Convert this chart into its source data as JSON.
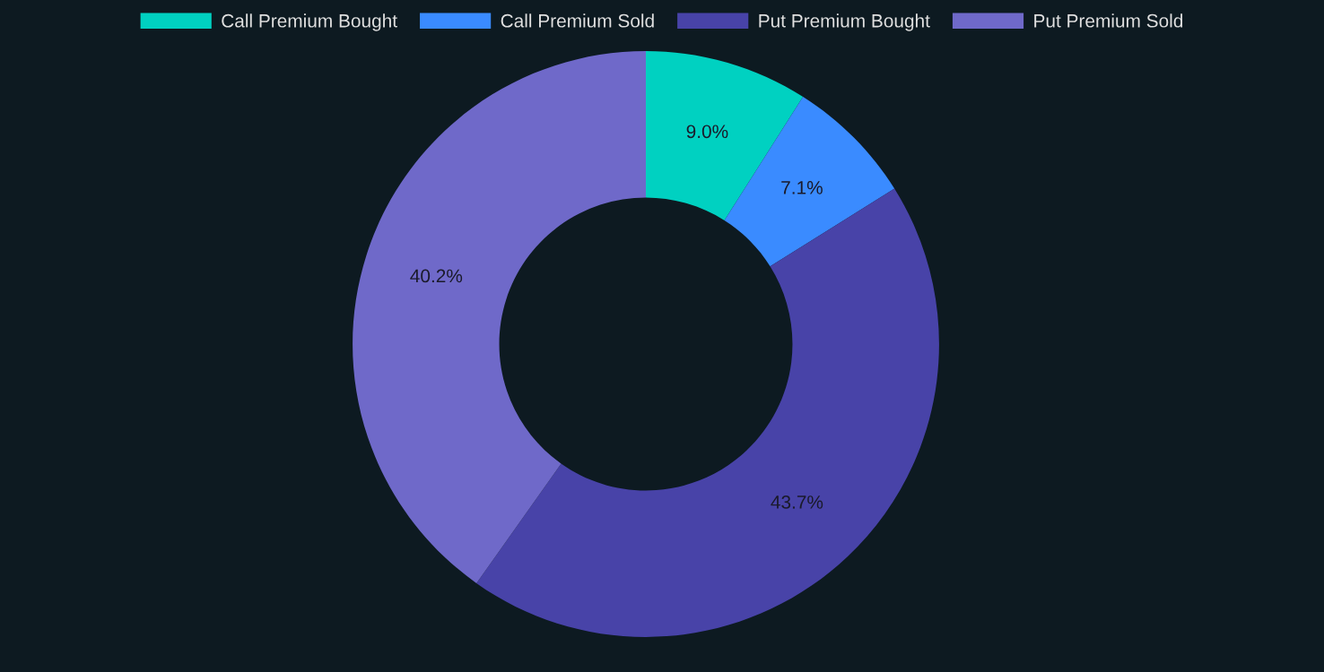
{
  "chart_data": {
    "type": "donut",
    "categories": [
      "Call Premium Bought",
      "Call Premium Sold",
      "Put Premium Bought",
      "Put Premium Sold"
    ],
    "values": [
      9.0,
      7.1,
      43.7,
      40.2
    ],
    "colors": [
      "#00d1c1",
      "#3a8bff",
      "#4843a8",
      "#6f69c9"
    ],
    "value_labels": [
      "9.0%",
      "7.1%",
      "43.7%",
      "40.2%"
    ],
    "legend": "top"
  }
}
